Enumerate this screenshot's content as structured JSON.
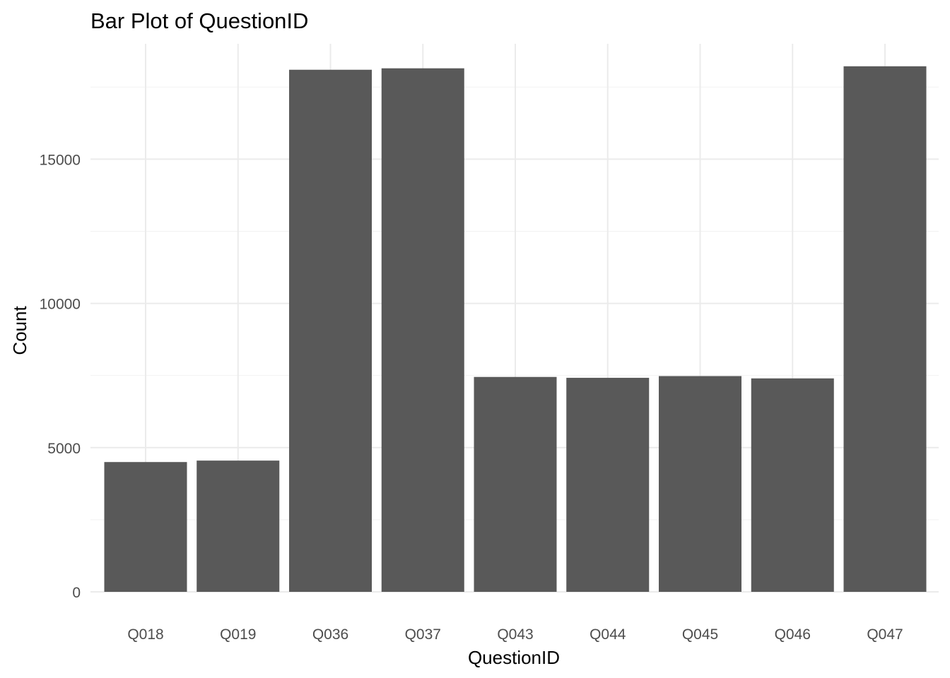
{
  "chart_data": {
    "type": "bar",
    "title": "Bar Plot of QuestionID",
    "xlabel": "QuestionID",
    "ylabel": "Count",
    "categories": [
      "Q018",
      "Q019",
      "Q036",
      "Q037",
      "Q043",
      "Q044",
      "Q045",
      "Q046",
      "Q047"
    ],
    "values": [
      4500,
      4550,
      18100,
      18150,
      7450,
      7420,
      7480,
      7400,
      18220
    ],
    "ylim": [
      0,
      19000
    ],
    "yticks": [
      0,
      5000,
      10000,
      15000
    ],
    "yticklabels": [
      "0",
      "5000",
      "10000",
      "15000"
    ],
    "grid": true,
    "legend": "none",
    "bar_color": "#595959",
    "grid_color": "#ebebeb",
    "background_color": "#ffffff"
  }
}
